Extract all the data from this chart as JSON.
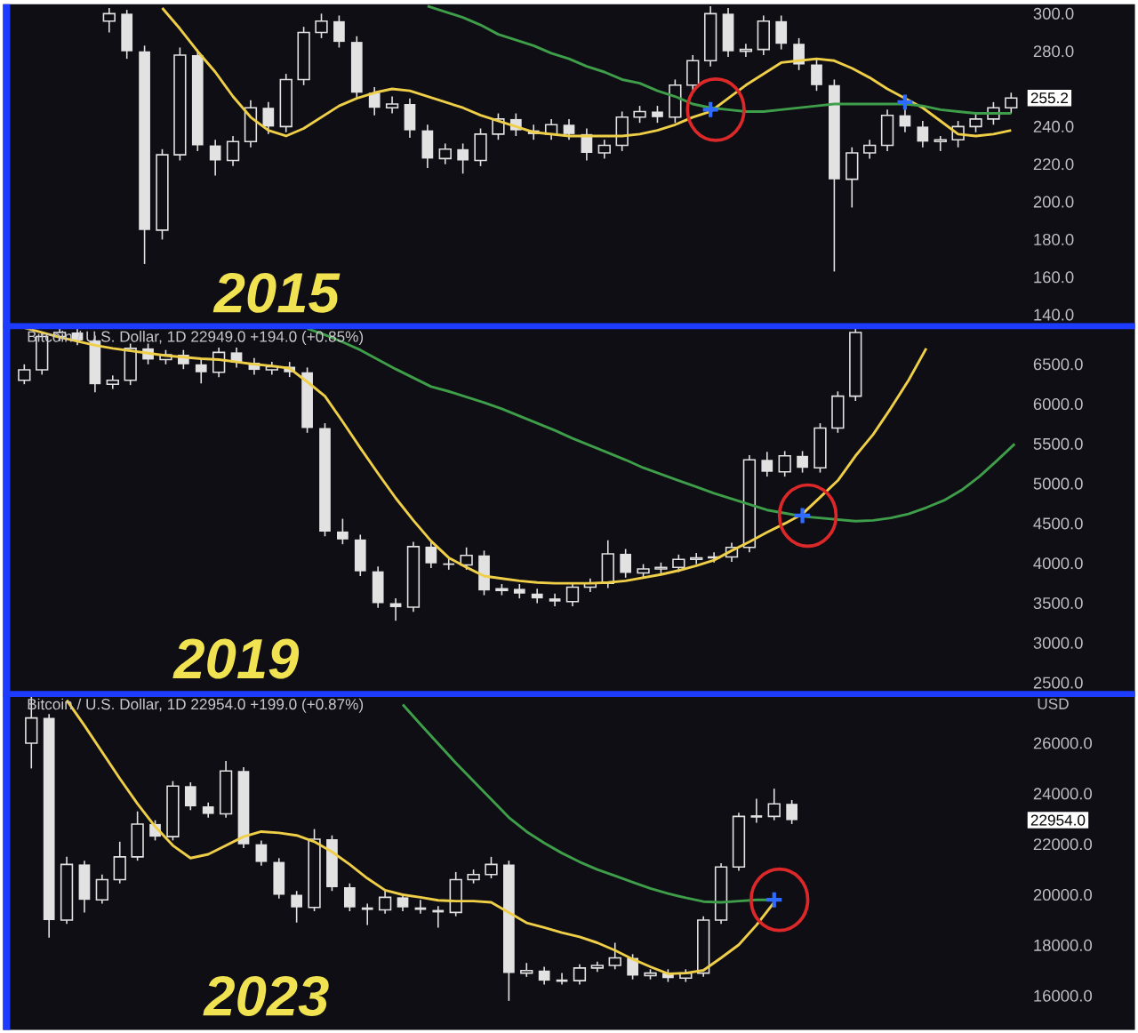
{
  "chart_data": [
    {
      "type": "candlestick",
      "color": "#e2e2e2",
      "tick_labels": "y",
      "categories": [
        null,
        null,
        null,
        null,
        null,
        null,
        null,
        null,
        null,
        null,
        null,
        null,
        null,
        null,
        null,
        null,
        null,
        null,
        null,
        null,
        null,
        null,
        null,
        null,
        null,
        null,
        null,
        null,
        null,
        null,
        null,
        null,
        null,
        null,
        null,
        null,
        null,
        null,
        null,
        null,
        null,
        null,
        null,
        null,
        null,
        null,
        null,
        null,
        null,
        null,
        null,
        null
      ],
      "ohlc": [
        [
          296,
          303,
          290,
          300
        ],
        [
          300,
          302,
          276,
          280
        ],
        [
          280,
          283,
          167,
          185
        ],
        [
          185,
          228,
          180,
          225
        ],
        [
          225,
          282,
          222,
          278
        ],
        [
          278,
          281,
          227,
          230
        ],
        [
          230,
          233,
          214,
          222
        ],
        [
          222,
          235,
          219,
          232
        ],
        [
          232,
          254,
          229,
          250
        ],
        [
          250,
          253,
          236,
          240
        ],
        [
          240,
          268,
          237,
          265
        ],
        [
          265,
          293,
          262,
          290
        ],
        [
          290,
          300,
          287,
          296
        ],
        [
          296,
          299,
          282,
          285
        ],
        [
          285,
          288,
          255,
          258
        ],
        [
          258,
          261,
          246,
          250
        ],
        [
          250,
          256,
          247,
          252
        ],
        [
          252,
          255,
          234,
          238
        ],
        [
          238,
          241,
          218,
          223
        ],
        [
          223,
          231,
          220,
          228
        ],
        [
          228,
          231,
          215,
          222
        ],
        [
          222,
          239,
          219,
          236
        ],
        [
          236,
          247,
          233,
          244
        ],
        [
          244,
          247,
          235,
          238
        ],
        [
          238,
          241,
          233,
          236
        ],
        [
          236,
          244,
          233,
          241
        ],
        [
          241,
          244,
          233,
          236
        ],
        [
          236,
          239,
          222,
          226
        ],
        [
          226,
          233,
          223,
          230
        ],
        [
          230,
          248,
          227,
          245
        ],
        [
          245,
          251,
          242,
          248
        ],
        [
          248,
          251,
          242,
          245
        ],
        [
          245,
          265,
          242,
          262
        ],
        [
          262,
          278,
          259,
          275
        ],
        [
          275,
          304,
          272,
          300
        ],
        [
          300,
          303,
          277,
          280
        ],
        [
          280,
          284,
          277,
          281
        ],
        [
          281,
          299,
          278,
          296
        ],
        [
          296,
          299,
          281,
          284
        ],
        [
          284,
          287,
          270,
          273
        ],
        [
          273,
          276,
          259,
          262
        ],
        [
          262,
          265,
          163,
          212
        ],
        [
          212,
          229,
          197,
          226
        ],
        [
          226,
          233,
          223,
          230
        ],
        [
          230,
          249,
          227,
          246
        ],
        [
          246,
          249,
          237,
          240
        ],
        [
          240,
          243,
          229,
          232
        ],
        [
          232,
          235,
          227,
          233
        ],
        [
          233,
          243,
          229,
          240
        ],
        [
          240,
          247,
          237,
          244
        ],
        [
          244,
          253,
          241,
          250
        ],
        [
          250,
          258,
          247,
          255.2
        ]
      ],
      "series": [
        {
          "type": "line",
          "color": "#f0cf48",
          "values": [
            null,
            null,
            null,
            303,
            292,
            280,
            269,
            256,
            245,
            238,
            235,
            239,
            245,
            251,
            255,
            258,
            260,
            259,
            256,
            253,
            250,
            246,
            243,
            240,
            237,
            236,
            235,
            235,
            235,
            235,
            236,
            238,
            241,
            245,
            248,
            255,
            262,
            268,
            274,
            275,
            276,
            275,
            271,
            266,
            260,
            255,
            250,
            243,
            236,
            235,
            236,
            238
          ]
        },
        {
          "type": "line",
          "color": "#3f9e4a",
          "values": [
            null,
            null,
            null,
            null,
            null,
            null,
            null,
            null,
            null,
            null,
            null,
            null,
            null,
            null,
            null,
            null,
            null,
            null,
            304,
            301,
            298,
            294,
            289,
            286,
            283,
            279,
            276,
            272,
            269,
            265,
            263,
            259,
            256,
            252,
            250,
            249,
            248,
            248,
            249,
            250,
            251,
            252,
            252,
            252,
            252,
            252,
            251,
            249,
            248,
            247,
            247,
            247
          ]
        },
        {
          "type": "scatter",
          "marker": "cross",
          "color": "#2f6bff",
          "values": [
            null,
            null,
            null,
            null,
            null,
            null,
            null,
            null,
            null,
            null,
            null,
            null,
            null,
            null,
            null,
            null,
            null,
            null,
            null,
            null,
            null,
            null,
            null,
            null,
            null,
            null,
            null,
            null,
            null,
            null,
            null,
            null,
            null,
            null,
            249,
            null,
            null,
            null,
            null,
            null,
            null,
            null,
            null,
            null,
            null,
            253,
            null,
            null,
            null,
            null,
            null,
            null
          ]
        }
      ],
      "ylim": [
        134,
        305
      ],
      "yticks": [
        {
          "value": 140,
          "label": "140.0"
        },
        {
          "value": 160,
          "label": "160.0"
        },
        {
          "value": 180,
          "label": "180.0"
        },
        {
          "value": 200,
          "label": "200.0"
        },
        {
          "value": 220,
          "label": "220.0"
        },
        {
          "value": 240,
          "label": "240.0"
        },
        {
          "value": 280,
          "label": "280.0"
        },
        {
          "value": 300,
          "label": "300.0"
        }
      ],
      "annotations": [
        "2015",
        "255.2"
      ]
    },
    {
      "type": "candlestick",
      "color": "#e2e2e2",
      "tick_labels": "y",
      "title": "Bitcoin / U.S. Dollar, 1D 22949.0 +194.0 (+0.85%)",
      "categories": [
        null,
        null,
        null,
        null,
        null,
        null,
        null,
        null,
        null,
        null,
        null,
        null,
        null,
        null,
        null,
        null,
        null,
        null,
        null,
        null,
        null,
        null,
        null,
        null,
        null,
        null,
        null,
        null,
        null,
        null,
        null,
        null,
        null,
        null,
        null,
        null,
        null,
        null,
        null,
        null,
        null,
        null,
        null,
        null,
        null,
        null,
        null,
        null,
        null,
        null,
        null,
        null,
        null,
        null,
        null,
        null,
        null
      ],
      "ohlc": [
        [
          6300,
          6500,
          6250,
          6430
        ],
        [
          6430,
          6900,
          6370,
          6850
        ],
        [
          6850,
          6950,
          6790,
          6900
        ],
        [
          6900,
          6950,
          6740,
          6800
        ],
        [
          6800,
          6860,
          6150,
          6250
        ],
        [
          6250,
          6360,
          6190,
          6300
        ],
        [
          6300,
          6760,
          6240,
          6700
        ],
        [
          6700,
          6760,
          6500,
          6560
        ],
        [
          6560,
          6680,
          6500,
          6620
        ],
        [
          6620,
          6680,
          6440,
          6500
        ],
        [
          6500,
          6560,
          6260,
          6400
        ],
        [
          6400,
          6710,
          6340,
          6650
        ],
        [
          6650,
          6710,
          6460,
          6520
        ],
        [
          6520,
          6580,
          6370,
          6430
        ],
        [
          6430,
          6530,
          6370,
          6470
        ],
        [
          6470,
          6530,
          6340,
          6400
        ],
        [
          6400,
          6460,
          5640,
          5700
        ],
        [
          5700,
          5760,
          4340,
          4400
        ],
        [
          4400,
          4560,
          4240,
          4300
        ],
        [
          4300,
          4360,
          3840,
          3900
        ],
        [
          3900,
          3960,
          3440,
          3500
        ],
        [
          3500,
          3560,
          3280,
          3450
        ],
        [
          3450,
          4270,
          3390,
          4210
        ],
        [
          4210,
          4270,
          3940,
          4000
        ],
        [
          4000,
          4060,
          3920,
          3980
        ],
        [
          3980,
          4200,
          3920,
          4100
        ],
        [
          4100,
          4160,
          3600,
          3660
        ],
        [
          3660,
          3740,
          3600,
          3680
        ],
        [
          3680,
          3740,
          3560,
          3620
        ],
        [
          3620,
          3680,
          3500,
          3560
        ],
        [
          3560,
          3620,
          3460,
          3520
        ],
        [
          3520,
          3760,
          3460,
          3700
        ],
        [
          3700,
          3810,
          3640,
          3750
        ],
        [
          3750,
          4290,
          3690,
          4120
        ],
        [
          4120,
          4180,
          3820,
          3880
        ],
        [
          3880,
          3990,
          3820,
          3930
        ],
        [
          3930,
          4010,
          3870,
          3950
        ],
        [
          3950,
          4110,
          3890,
          4050
        ],
        [
          4050,
          4130,
          3990,
          4070
        ],
        [
          4070,
          4140,
          4010,
          4080
        ],
        [
          4080,
          4260,
          4020,
          4200
        ],
        [
          4200,
          5360,
          4140,
          5300
        ],
        [
          5300,
          5400,
          5090,
          5150
        ],
        [
          5150,
          5410,
          5090,
          5350
        ],
        [
          5350,
          5410,
          5140,
          5200
        ],
        [
          5200,
          5760,
          5140,
          5700
        ],
        [
          5700,
          6160,
          5640,
          6100
        ],
        [
          6100,
          6950,
          6040,
          6900
        ],
        null,
        null,
        null,
        null,
        null,
        null,
        null,
        null,
        null
      ],
      "series": [
        {
          "type": "line",
          "color": "#f0cf48",
          "values": [
            6960,
            6900,
            6840,
            6790,
            6740,
            6700,
            6670,
            6640,
            6610,
            6590,
            6570,
            6560,
            6530,
            6500,
            6480,
            6450,
            6280,
            6100,
            5780,
            5450,
            5130,
            4820,
            4540,
            4280,
            4070,
            3950,
            3840,
            3810,
            3780,
            3760,
            3750,
            3750,
            3750,
            3760,
            3780,
            3820,
            3860,
            3910,
            3970,
            4040,
            4160,
            4270,
            4390,
            4500,
            4620,
            4830,
            5040,
            5350,
            5620,
            5950,
            6300,
            6700,
            null,
            null,
            null,
            null,
            null
          ]
        },
        {
          "type": "line",
          "color": "#3f9e4a",
          "values": [
            null,
            null,
            null,
            null,
            null,
            null,
            null,
            null,
            null,
            null,
            null,
            null,
            null,
            null,
            null,
            null,
            6950,
            6870,
            6780,
            6680,
            6560,
            6440,
            6330,
            6220,
            6160,
            6090,
            6020,
            5940,
            5850,
            5760,
            5670,
            5570,
            5480,
            5390,
            5300,
            5200,
            5120,
            5040,
            4960,
            4880,
            4810,
            4740,
            4670,
            4630,
            4590,
            4570,
            4550,
            4530,
            4540,
            4570,
            4620,
            4700,
            4790,
            4920,
            5090,
            5290,
            5500
          ]
        },
        {
          "type": "scatter",
          "marker": "cross",
          "color": "#2f6bff",
          "values": [
            null,
            null,
            null,
            null,
            null,
            null,
            null,
            null,
            null,
            null,
            null,
            null,
            null,
            null,
            null,
            null,
            null,
            null,
            null,
            null,
            null,
            null,
            null,
            null,
            null,
            null,
            null,
            null,
            null,
            null,
            null,
            null,
            null,
            null,
            null,
            null,
            null,
            null,
            null,
            null,
            null,
            null,
            null,
            null,
            4600,
            null,
            null,
            null,
            null,
            null,
            null,
            null,
            null,
            null,
            null,
            null,
            null
          ]
        }
      ],
      "ylim": [
        2360,
        6980
      ],
      "yticks": [
        {
          "value": 2500,
          "label": "2500.0"
        },
        {
          "value": 3000,
          "label": "3000.0"
        },
        {
          "value": 3500,
          "label": "3500.0"
        },
        {
          "value": 4000,
          "label": "4000.0"
        },
        {
          "value": 4500,
          "label": "4500.0"
        },
        {
          "value": 5000,
          "label": "5000.0"
        },
        {
          "value": 5500,
          "label": "5500.0"
        },
        {
          "value": 6000,
          "label": "6000.0"
        },
        {
          "value": 6500,
          "label": "6500.0"
        }
      ],
      "annotations": [
        "2019"
      ]
    },
    {
      "type": "candlestick",
      "color": "#e2e2e2",
      "tick_labels": "y",
      "title": "Bitcoin / U.S. Dollar, 1D 22954.0 +199.0 (+0.87%)",
      "ylabel": "USD",
      "categories": [
        null,
        null,
        null,
        null,
        null,
        null,
        null,
        null,
        null,
        null,
        null,
        null,
        null,
        null,
        null,
        null,
        null,
        null,
        null,
        null,
        null,
        null,
        null,
        null,
        null,
        null,
        null,
        null,
        null,
        null,
        null,
        null,
        null,
        null,
        null,
        null,
        null,
        null,
        null,
        null,
        null,
        null,
        null,
        null
      ],
      "ohlc": [
        [
          26000,
          27900,
          25000,
          27000
        ],
        [
          27000,
          27150,
          18300,
          19000
        ],
        [
          19000,
          21500,
          18850,
          21200
        ],
        [
          21200,
          21350,
          19300,
          19800
        ],
        [
          19800,
          20800,
          19650,
          20600
        ],
        [
          20600,
          22100,
          20450,
          21500
        ],
        [
          21500,
          23300,
          21350,
          22800
        ],
        [
          22800,
          22950,
          22150,
          22300
        ],
        [
          22300,
          24500,
          22150,
          24300
        ],
        [
          24300,
          24450,
          23350,
          23500
        ],
        [
          23500,
          23650,
          23050,
          23200
        ],
        [
          23200,
          25300,
          23050,
          24900
        ],
        [
          24900,
          25050,
          21850,
          22000
        ],
        [
          22000,
          22150,
          21150,
          21300
        ],
        [
          21300,
          21450,
          19850,
          20000
        ],
        [
          20000,
          20150,
          18900,
          19500
        ],
        [
          19500,
          22600,
          19350,
          22200
        ],
        [
          22200,
          22350,
          20150,
          20300
        ],
        [
          20300,
          20450,
          19350,
          19500
        ],
        [
          19500,
          19650,
          18800,
          19400
        ],
        [
          19400,
          20200,
          19250,
          19900
        ],
        [
          19900,
          20050,
          19350,
          19500
        ],
        [
          19500,
          19800,
          19250,
          19400
        ],
        [
          19400,
          19550,
          18700,
          19300
        ],
        [
          19300,
          20900,
          19150,
          20600
        ],
        [
          20600,
          21000,
          20450,
          20800
        ],
        [
          20800,
          21500,
          20650,
          21200
        ],
        [
          21200,
          21350,
          15800,
          16900
        ],
        [
          16900,
          17300,
          16750,
          17000
        ],
        [
          17000,
          17150,
          16450,
          16600
        ],
        [
          16600,
          16900,
          16450,
          16600
        ],
        [
          16600,
          17250,
          16450,
          17100
        ],
        [
          17100,
          17350,
          16950,
          17200
        ],
        [
          17200,
          18100,
          17050,
          17500
        ],
        [
          17500,
          17650,
          16650,
          16800
        ],
        [
          16800,
          17050,
          16650,
          16900
        ],
        [
          16900,
          17050,
          16550,
          16700
        ],
        [
          16700,
          17050,
          16550,
          16900
        ],
        [
          16900,
          19150,
          16750,
          19000
        ],
        [
          19000,
          21250,
          18850,
          21100
        ],
        [
          21100,
          23250,
          20950,
          23100
        ],
        [
          23100,
          23800,
          22850,
          23100
        ],
        [
          23100,
          24200,
          22950,
          23600
        ],
        [
          23600,
          23750,
          22800,
          22954
        ]
      ],
      "series": [
        {
          "type": "line",
          "color": "#f0cf48",
          "values": [
            null,
            null,
            27700,
            26700,
            25650,
            24600,
            23600,
            22700,
            21950,
            21450,
            21600,
            21950,
            22300,
            22500,
            22450,
            22350,
            22100,
            21700,
            21200,
            20650,
            20180,
            20000,
            19900,
            19780,
            19750,
            19750,
            19700,
            19300,
            18890,
            18700,
            18500,
            18330,
            18100,
            17800,
            17450,
            17150,
            16870,
            16900,
            17010,
            17500,
            18020,
            18800,
            19700,
            null
          ]
        },
        {
          "type": "line",
          "color": "#3f9e4a",
          "values": [
            null,
            null,
            null,
            null,
            null,
            null,
            null,
            null,
            null,
            null,
            null,
            null,
            null,
            null,
            null,
            null,
            null,
            null,
            null,
            null,
            null,
            27530,
            26750,
            25980,
            25220,
            24500,
            23780,
            23060,
            22500,
            22050,
            21650,
            21300,
            21000,
            20750,
            20500,
            20250,
            20050,
            19880,
            19730,
            19700,
            19750,
            19800,
            19800,
            null
          ]
        },
        {
          "type": "scatter",
          "marker": "cross",
          "color": "#2f6bff",
          "values": [
            null,
            null,
            null,
            null,
            null,
            null,
            null,
            null,
            null,
            null,
            null,
            null,
            null,
            null,
            null,
            null,
            null,
            null,
            null,
            null,
            null,
            null,
            null,
            null,
            null,
            null,
            null,
            null,
            null,
            null,
            null,
            null,
            null,
            null,
            null,
            null,
            null,
            null,
            null,
            null,
            null,
            null,
            19800,
            null
          ]
        }
      ],
      "ylim": [
        14650,
        27950
      ],
      "yticks": [
        {
          "value": 16000,
          "label": "16000.0"
        },
        {
          "value": 18000,
          "label": "18000.0"
        },
        {
          "value": 20000,
          "label": "20000.0"
        },
        {
          "value": 22000,
          "label": "22000.0"
        },
        {
          "value": 24000,
          "label": "24000.0"
        },
        {
          "value": 26000,
          "label": "26000.0"
        }
      ],
      "annotations": [
        "2023",
        "22954.0"
      ]
    }
  ]
}
